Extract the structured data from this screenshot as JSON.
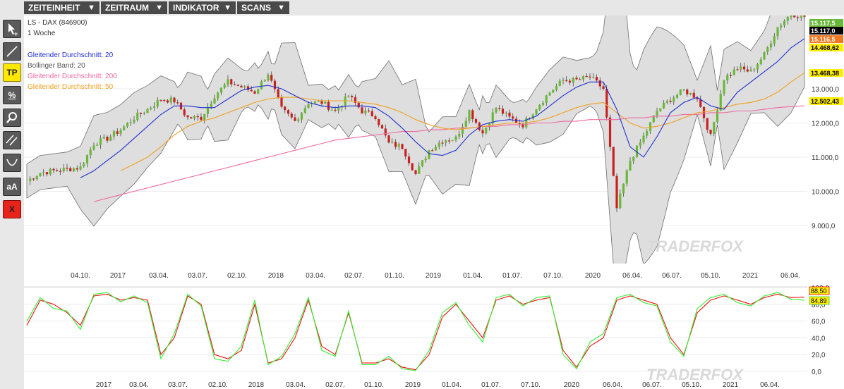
{
  "menu": [
    {
      "label": "ZEITEINHEIT"
    },
    {
      "label": "ZEITRAUM"
    },
    {
      "label": "INDIKATOR"
    },
    {
      "label": "SCANS"
    }
  ],
  "tools": [
    {
      "icon": "cursor-add-icon",
      "label": ""
    },
    {
      "icon": "trendline-icon",
      "label": ""
    },
    {
      "icon": "tp-icon",
      "label": "TP"
    },
    {
      "icon": "percent-icon",
      "label": "%"
    },
    {
      "icon": "magnifier-icon",
      "label": ""
    },
    {
      "icon": "parallel-lines-icon",
      "label": ""
    },
    {
      "icon": "arc-icon",
      "label": ""
    },
    {
      "icon": "font-size-icon",
      "label": "aA"
    },
    {
      "icon": "delete-icon",
      "label": "X"
    }
  ],
  "chart": {
    "symbol": "LS - DAX (846900)",
    "timeframe": "1 Woche",
    "legend": [
      {
        "label": "Gleitender Durchschnitt: 20",
        "color": "#2030d0"
      },
      {
        "label": "Bollinger Band: 20",
        "color": "#555555"
      },
      {
        "label": "Gleitender Durchschnitt: 200",
        "color": "#f06aa0"
      },
      {
        "label": "Gleitender Durchschnitt: 50",
        "color": "#f0a020"
      }
    ],
    "watermark": "TRADERFOX",
    "price_ticks": [
      "9.000,0",
      "10.000,0",
      "11.000,0",
      "12.000,0",
      "13.000,0"
    ],
    "price_tick_values": [
      9000,
      10000,
      11000,
      12000,
      13000
    ],
    "price_tags": [
      {
        "text": "15.117,5",
        "value": 15117.5,
        "bg": "#6ab83a",
        "fg": "#ffffff"
      },
      {
        "text": "15.117,0",
        "value": 15117.0,
        "bg": "#000000",
        "fg": "#ffffff"
      },
      {
        "text": "15.116,5",
        "value": 15116.5,
        "bg": "#f07820",
        "fg": "#ffffff"
      },
      {
        "text": "14.468,62",
        "value": 14468.62,
        "bg": "#ffee00",
        "fg": "#000000"
      },
      {
        "text": "13.468,38",
        "value": 13468.38,
        "bg": "#ffee00",
        "fg": "#000000"
      },
      {
        "text": "12.502,43",
        "value": 12502.43,
        "bg": "#ffee00",
        "fg": "#000000"
      }
    ],
    "x_labels_top": [
      "04.10.",
      "2017",
      "03.04.",
      "03.07.",
      "02.10.",
      "2018",
      "03.04.",
      "02.07.",
      "01.10.",
      "2019",
      "01.04.",
      "01.07.",
      "07.10.",
      "2020",
      "06.04.",
      "06.07.",
      "05.10.",
      "2021",
      "06.04."
    ],
    "x_labels_bottom": [
      "2017",
      "03.04.",
      "03.07.",
      "02.10.",
      "2018",
      "03.04.",
      "02.07.",
      "01.10.",
      "2019",
      "01.04.",
      "01.07.",
      "07.10.",
      "2020",
      "06.04.",
      "06.07.",
      "05.10.",
      "2021",
      "06.04."
    ],
    "osc_ticks": [
      "0,0",
      "20,0",
      "40,0",
      "60,0",
      "80,0",
      "100,0"
    ],
    "osc_tick_values": [
      0,
      20,
      40,
      60,
      80,
      100
    ],
    "osc_tags": [
      {
        "text": "88,50",
        "value": 88.5
      },
      {
        "text": "84,89",
        "value": 84.89
      }
    ]
  },
  "chart_data": {
    "type": "line",
    "title": "LS - DAX (846900)",
    "subtitle": "1 Woche",
    "ylim": [
      8000,
      15300
    ],
    "x": [
      "2016-07",
      "2016-08",
      "2016-09",
      "2016-10",
      "2016-11",
      "2016-12",
      "2017-01",
      "2017-02",
      "2017-03",
      "2017-04",
      "2017-05",
      "2017-06",
      "2017-07",
      "2017-08",
      "2017-09",
      "2017-10",
      "2017-11",
      "2017-12",
      "2018-01",
      "2018-02",
      "2018-03",
      "2018-04",
      "2018-05",
      "2018-06",
      "2018-07",
      "2018-08",
      "2018-09",
      "2018-10",
      "2018-11",
      "2018-12",
      "2019-01",
      "2019-02",
      "2019-03",
      "2019-04",
      "2019-05",
      "2019-06",
      "2019-07",
      "2019-08",
      "2019-09",
      "2019-10",
      "2019-11",
      "2019-12",
      "2020-01",
      "2020-02",
      "2020-03",
      "2020-04",
      "2020-05",
      "2020-06",
      "2020-07",
      "2020-08",
      "2020-09",
      "2020-10",
      "2020-11",
      "2020-12",
      "2021-01",
      "2021-02",
      "2021-03",
      "2021-04",
      "2021-05"
    ],
    "series": [
      {
        "name": "LS - DAX (846900)",
        "values": [
          10300,
          10550,
          10600,
          10650,
          10700,
          11400,
          11550,
          11800,
          12150,
          12400,
          12700,
          12650,
          12150,
          12150,
          12800,
          13200,
          13050,
          12900,
          13450,
          12400,
          12050,
          12600,
          12600,
          12350,
          12800,
          12350,
          12200,
          11400,
          11300,
          10500,
          11200,
          11500,
          11550,
          12350,
          11700,
          12450,
          12150,
          11950,
          12450,
          12900,
          13250,
          13250,
          13350,
          13000,
          9500,
          10900,
          11600,
          12350,
          12700,
          12950,
          12750,
          11600,
          13300,
          13600,
          13500,
          14000,
          14800,
          15200,
          15117
        ]
      },
      {
        "name": "Gleitender Durchschnitt: 20",
        "values": [
          null,
          null,
          null,
          null,
          10400,
          10600,
          10900,
          11200,
          11550,
          11900,
          12250,
          12500,
          12500,
          12450,
          12450,
          12700,
          12950,
          13050,
          13100,
          13000,
          12800,
          12600,
          12500,
          12450,
          12500,
          12500,
          12450,
          12200,
          11850,
          11450,
          11100,
          11050,
          11200,
          11650,
          11950,
          12050,
          12100,
          12050,
          12200,
          12500,
          12800,
          13050,
          13200,
          13200,
          12400,
          11300,
          11000,
          11600,
          12300,
          12600,
          12750,
          12500,
          12400,
          12900,
          13200,
          13500,
          13800,
          14200,
          14468
        ]
      },
      {
        "name": "Gleitender Durchschnitt: 50",
        "values": [
          null,
          null,
          null,
          null,
          null,
          null,
          null,
          10600,
          10800,
          11000,
          11300,
          11650,
          11900,
          12050,
          12150,
          12300,
          12450,
          12600,
          12700,
          12750,
          12750,
          12700,
          12650,
          12650,
          12650,
          12600,
          12550,
          12450,
          12300,
          12100,
          11950,
          11850,
          11800,
          11850,
          11900,
          11950,
          12000,
          12000,
          12050,
          12150,
          12300,
          12450,
          12550,
          12600,
          12300,
          12000,
          11850,
          11900,
          12000,
          12150,
          12300,
          12350,
          12450,
          12550,
          12600,
          12700,
          12900,
          13200,
          13468
        ]
      },
      {
        "name": "Gleitender Durchschnitt: 200",
        "values": [
          null,
          null,
          null,
          null,
          null,
          9700,
          9800,
          9900,
          10000,
          10100,
          10200,
          10300,
          10400,
          10500,
          10600,
          10700,
          10800,
          10900,
          11000,
          11100,
          11200,
          11300,
          11400,
          11500,
          11550,
          11600,
          11650,
          11700,
          11750,
          11750,
          11800,
          11800,
          11850,
          11850,
          11900,
          11900,
          11950,
          11950,
          12000,
          12000,
          12050,
          12050,
          12100,
          12100,
          12100,
          12150,
          12150,
          12200,
          12200,
          12250,
          12250,
          12300,
          12300,
          12350,
          12350,
          12400,
          12450,
          12480,
          12502
        ]
      }
    ],
    "oscillator": {
      "type": "line",
      "ylim": [
        0,
        100
      ],
      "series": [
        {
          "name": "",
          "color": "#ee1111",
          "values": [
            55,
            85,
            80,
            70,
            55,
            90,
            92,
            85,
            88,
            85,
            20,
            40,
            90,
            80,
            20,
            15,
            25,
            80,
            10,
            15,
            40,
            85,
            30,
            20,
            70,
            10,
            10,
            15,
            5,
            2,
            20,
            65,
            80,
            60,
            40,
            85,
            90,
            80,
            85,
            88,
            25,
            5,
            30,
            40,
            85,
            90,
            85,
            80,
            40,
            20,
            70,
            85,
            90,
            85,
            80,
            88,
            92,
            88,
            88.5
          ]
        },
        {
          "name": "",
          "color": "#33ee33",
          "values": [
            60,
            88,
            75,
            72,
            50,
            92,
            94,
            83,
            90,
            82,
            15,
            45,
            92,
            78,
            15,
            12,
            30,
            85,
            8,
            18,
            45,
            88,
            25,
            18,
            72,
            8,
            8,
            18,
            3,
            1,
            25,
            70,
            82,
            55,
            35,
            88,
            92,
            78,
            88,
            90,
            20,
            3,
            35,
            45,
            88,
            92,
            82,
            78,
            35,
            18,
            75,
            88,
            92,
            82,
            78,
            90,
            94,
            86,
            84.89
          ]
        }
      ]
    }
  }
}
